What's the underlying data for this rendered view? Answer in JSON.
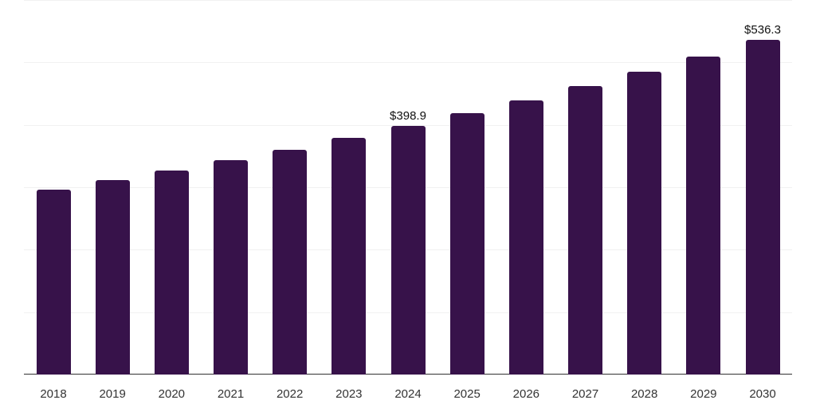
{
  "chart_data": {
    "type": "bar",
    "title": "",
    "xlabel": "",
    "ylabel": "",
    "categories": [
      "2018",
      "2019",
      "2020",
      "2021",
      "2022",
      "2023",
      "2024",
      "2025",
      "2026",
      "2027",
      "2028",
      "2029",
      "2030"
    ],
    "values": [
      296.5,
      311.8,
      327.2,
      343.8,
      360.4,
      379.6,
      398.9,
      419.2,
      439.6,
      462.6,
      485.6,
      509.9,
      536.3
    ],
    "data_labels": [
      {
        "category": "2024",
        "text": "$398.9"
      },
      {
        "category": "2030",
        "text": "$536.3"
      }
    ],
    "ylim": [
      0,
      600
    ],
    "yticks": [
      0,
      100,
      200,
      300,
      400,
      500,
      600
    ],
    "grid": true,
    "legend": null,
    "bar_color": "#37124a"
  }
}
